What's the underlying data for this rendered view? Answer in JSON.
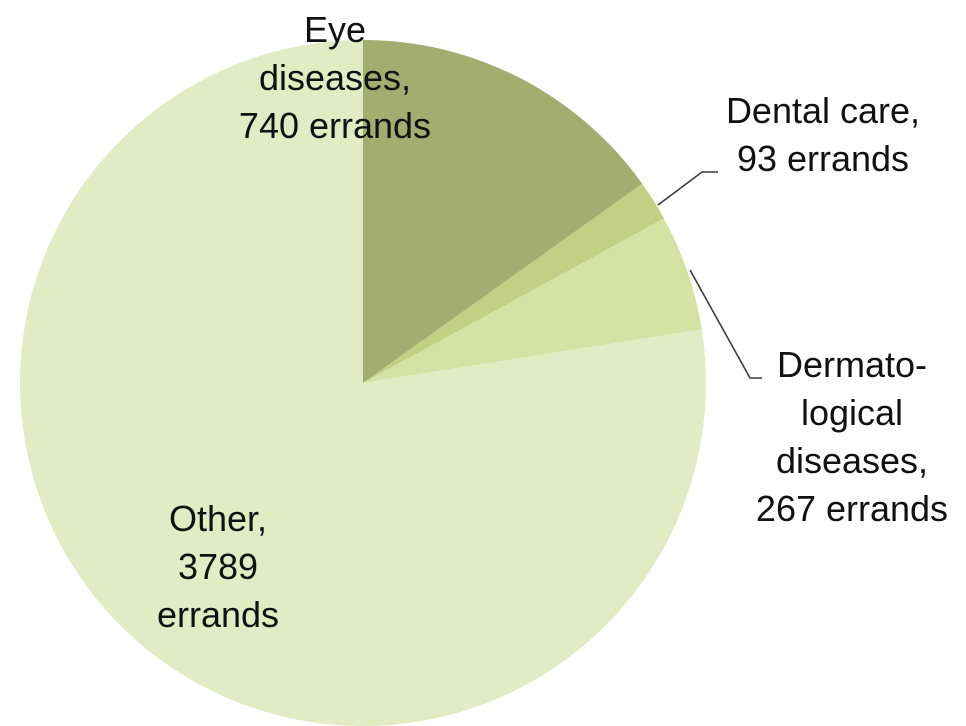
{
  "chart_data": {
    "type": "pie",
    "title": "",
    "unit": "errands",
    "slices": [
      {
        "category": "Eye diseases",
        "value": 740,
        "color": "#a3ad6f",
        "label_lines": [
          "Eye",
          "diseases,",
          "740 errands"
        ]
      },
      {
        "category": "Dental care",
        "value": 93,
        "color": "#c3cf84",
        "label_lines": [
          "Dental  care,",
          "93 errands"
        ]
      },
      {
        "category": "Dermatological diseases",
        "value": 267,
        "color": "#d6e2a4",
        "label_lines": [
          "Dermato-",
          "logical",
          "diseases,",
          "267 errands"
        ]
      },
      {
        "category": "Other",
        "value": 3789,
        "color": "#e3ebc5",
        "label_lines": [
          "Other,",
          "3789",
          "errands"
        ]
      }
    ]
  }
}
